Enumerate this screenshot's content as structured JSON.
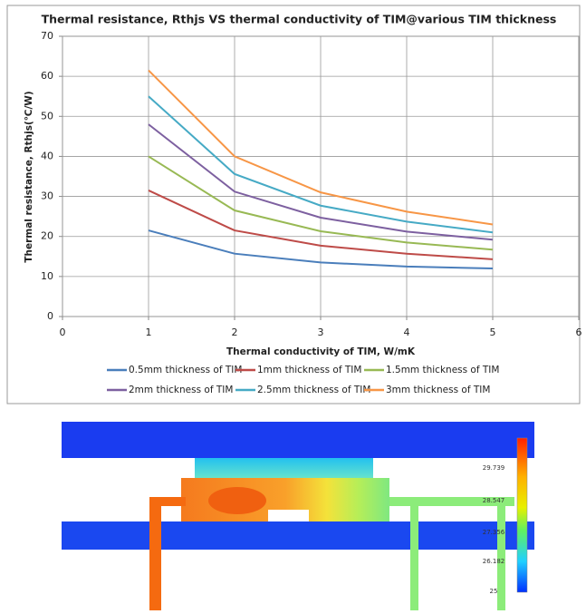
{
  "chart_data": {
    "type": "line",
    "title": "Thermal resistance, Rthjs VS thermal conductivity of TIM@various TIM thickness",
    "x_label": "Thermal conductivity of TIM, W/mK",
    "y_label": "Thermal resistance, Rthjs(℃/W)",
    "x": [
      1,
      2,
      3,
      4,
      5
    ],
    "series": [
      {
        "name": "0.5mm thickness of TIM",
        "color": "#4a7ebb",
        "values": [
          21.5,
          15.7,
          13.5,
          12.5,
          12
        ]
      },
      {
        "name": "1mm thickness of TIM",
        "color": "#be4b48",
        "values": [
          31.5,
          21.5,
          17.7,
          15.7,
          14.3
        ]
      },
      {
        "name": "1.5mm thickness of TIM",
        "color": "#98b954",
        "values": [
          40,
          26.5,
          21.3,
          18.5,
          16.7
        ]
      },
      {
        "name": "2mm thickness of TIM",
        "color": "#7d60a0",
        "values": [
          48,
          31.2,
          24.7,
          21.2,
          19.2
        ]
      },
      {
        "name": "2.5mm thickness of TIM",
        "color": "#46aac5",
        "values": [
          55,
          35.6,
          27.7,
          23.7,
          21
        ]
      },
      {
        "name": "3mm thickness of TIM",
        "color": "#f79646",
        "values": [
          61.5,
          40,
          31,
          26.2,
          23
        ]
      }
    ],
    "xlim": [
      0,
      6
    ],
    "xticks": [
      0,
      1,
      2,
      3,
      4,
      5,
      6
    ],
    "ylim": [
      0,
      70
    ],
    "yticks": [
      0,
      10,
      20,
      30,
      40,
      50,
      60,
      70
    ],
    "grid": true,
    "legend": "bottom"
  },
  "thermal_image": {
    "colorbar_labels": [
      "29.739",
      "28.547",
      "27.356",
      "26.182",
      "25"
    ]
  }
}
